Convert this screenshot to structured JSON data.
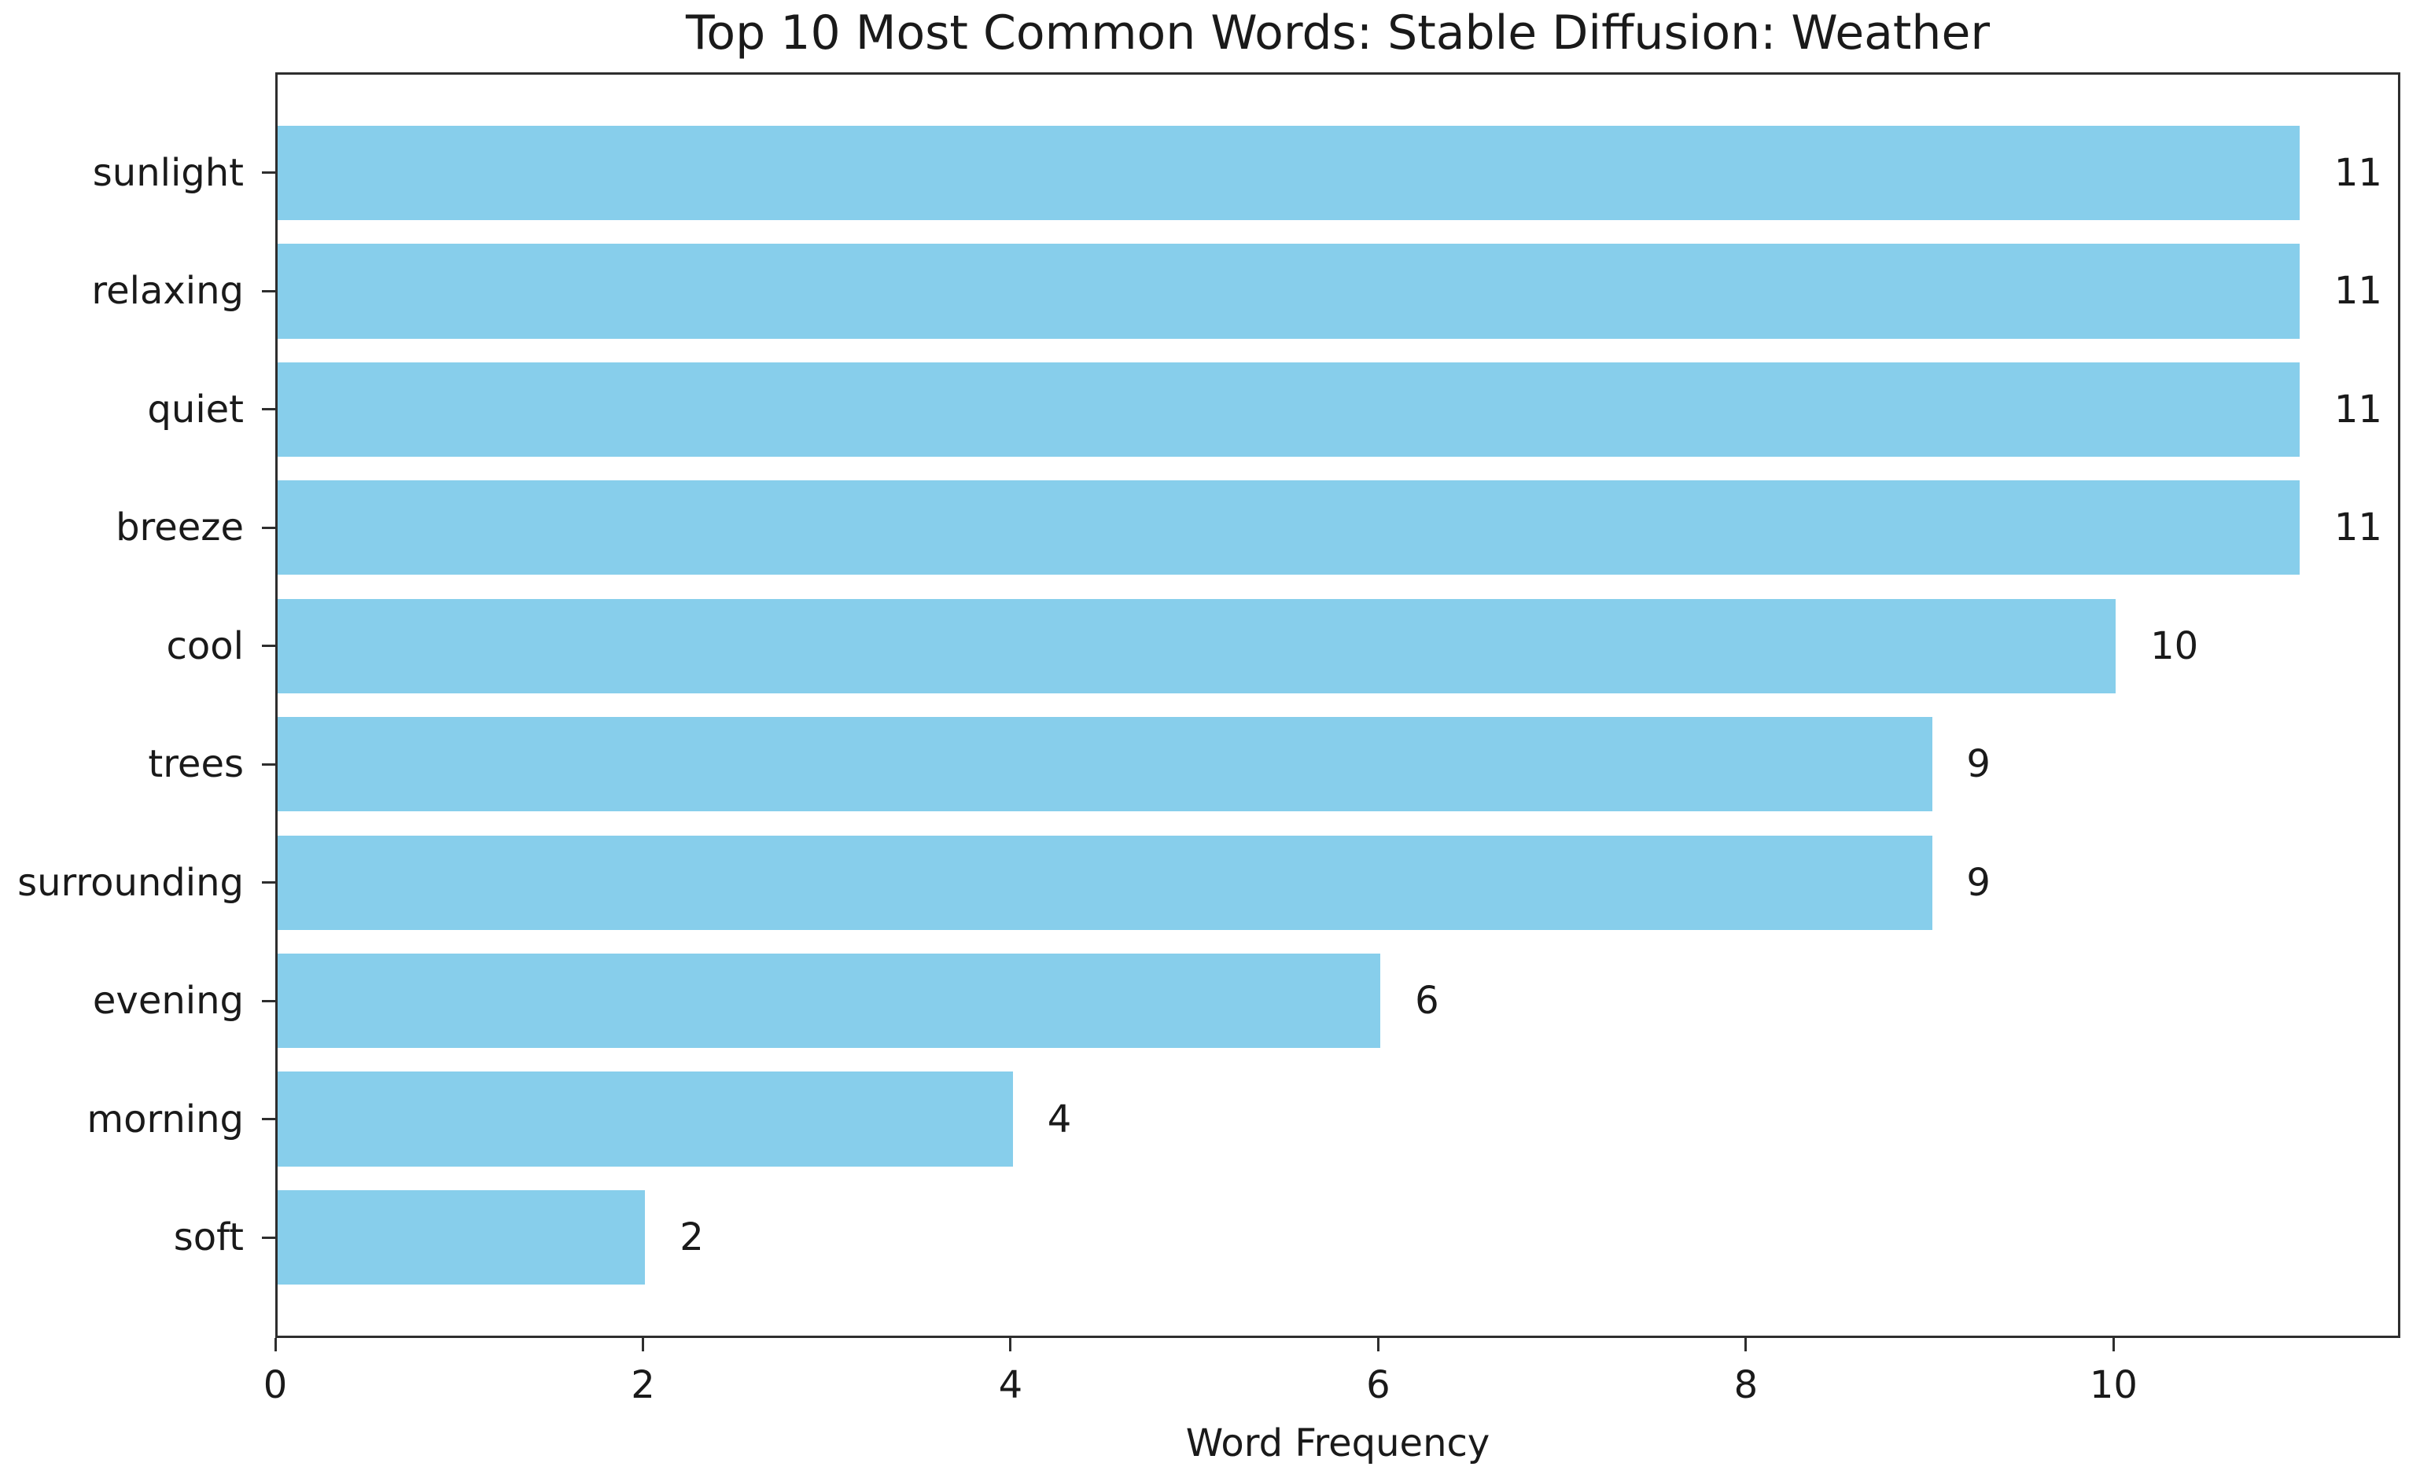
{
  "chart_data": {
    "type": "bar",
    "orientation": "horizontal",
    "title": "Top 10 Most Common Words: Stable Diffusion: Weather",
    "xlabel": "Word Frequency",
    "ylabel": "",
    "categories": [
      "sunlight",
      "relaxing",
      "quiet",
      "breeze",
      "cool",
      "trees",
      "surrounding",
      "evening",
      "morning",
      "soft"
    ],
    "values": [
      11,
      11,
      11,
      11,
      10,
      9,
      9,
      6,
      4,
      2
    ],
    "value_labels": [
      "11",
      "11",
      "11",
      "11",
      "10",
      "9",
      "9",
      "6",
      "4",
      "2"
    ],
    "xticks": [
      0,
      2,
      4,
      6,
      8,
      10
    ],
    "xlim": [
      0,
      11.56
    ],
    "grid": false,
    "legend": null,
    "bar_color": "#87CEEB",
    "axis_color": "#2e2e2e",
    "text_color": "#1a1a1a"
  }
}
